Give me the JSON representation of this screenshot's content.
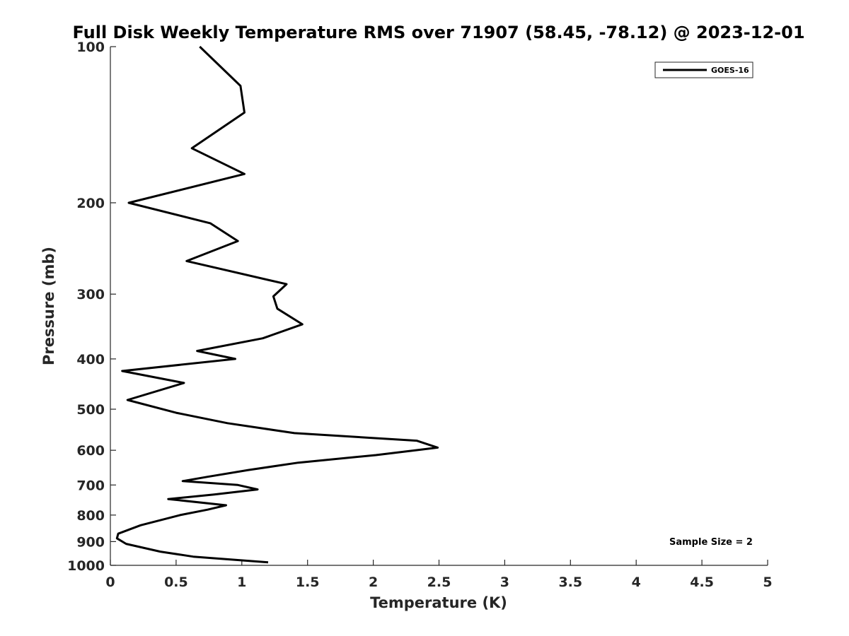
{
  "chart_data": {
    "type": "line",
    "title": "Full Disk Weekly Temperature RMS over 71907 (58.45, -78.12) @ 2023-12-01",
    "xlabel": "Temperature (K)",
    "ylabel": "Pressure (mb)",
    "xlim": [
      0,
      5
    ],
    "ylim": [
      100,
      1000
    ],
    "y_scale": "log",
    "y_reversed": true,
    "grid": false,
    "legend_position": "top-right",
    "x_ticks": [
      "0",
      "0.5",
      "1",
      "1.5",
      "2",
      "2.5",
      "3",
      "3.5",
      "4",
      "4.5",
      "5"
    ],
    "y_ticks": [
      "100",
      "200",
      "300",
      "400",
      "500",
      "600",
      "700",
      "800",
      "900",
      "1000"
    ],
    "series": [
      {
        "name": "GOES-16",
        "color": "#000000",
        "points": [
          [
            0.68,
            100
          ],
          [
            0.99,
            119
          ],
          [
            1.02,
            134
          ],
          [
            0.62,
            157
          ],
          [
            1.02,
            176
          ],
          [
            0.14,
            200
          ],
          [
            0.76,
            219
          ],
          [
            0.97,
            237
          ],
          [
            0.58,
            259
          ],
          [
            1.34,
            287
          ],
          [
            1.24,
            303
          ],
          [
            1.27,
            320
          ],
          [
            1.46,
            343
          ],
          [
            1.16,
            365
          ],
          [
            0.66,
            386
          ],
          [
            0.95,
            400
          ],
          [
            0.09,
            422
          ],
          [
            0.56,
            445
          ],
          [
            0.13,
            480
          ],
          [
            0.5,
            508
          ],
          [
            0.89,
            532
          ],
          [
            1.4,
            556
          ],
          [
            2.33,
            575
          ],
          [
            2.49,
            593
          ],
          [
            2.02,
            613
          ],
          [
            1.43,
            634
          ],
          [
            1.05,
            655
          ],
          [
            0.74,
            675
          ],
          [
            0.55,
            688
          ],
          [
            0.97,
            700
          ],
          [
            1.12,
            714
          ],
          [
            0.79,
            730
          ],
          [
            0.44,
            745
          ],
          [
            0.88,
            766
          ],
          [
            0.74,
            781
          ],
          [
            0.53,
            800
          ],
          [
            0.23,
            837
          ],
          [
            0.06,
            869
          ],
          [
            0.05,
            887
          ],
          [
            0.12,
            909
          ],
          [
            0.38,
            941
          ],
          [
            0.63,
            962
          ],
          [
            1.2,
            987
          ]
        ]
      }
    ],
    "annotations": [
      "Sample Size = 2"
    ]
  }
}
